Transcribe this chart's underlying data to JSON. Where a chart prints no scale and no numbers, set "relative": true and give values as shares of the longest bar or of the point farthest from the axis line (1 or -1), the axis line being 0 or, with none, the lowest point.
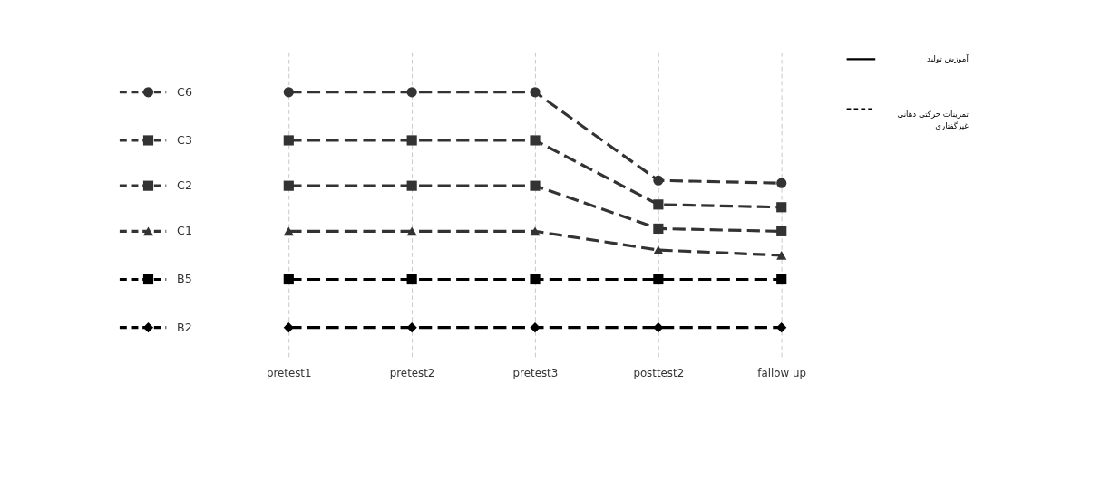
{
  "chart_data": {
    "type": "line",
    "relative": true,
    "categories": [
      "pretest1",
      "pretest2",
      "pretest3",
      "posttest2",
      "fallow up"
    ],
    "series": [
      {
        "name": "C6",
        "color": "#333333",
        "marker": "circle",
        "values": [
          1,
          1,
          1,
          0.67,
          0.66
        ]
      },
      {
        "name": "C3",
        "color": "#333333",
        "marker": "square",
        "values": [
          0.82,
          0.82,
          0.82,
          0.58,
          0.57
        ]
      },
      {
        "name": "C2",
        "color": "#333333",
        "marker": "square",
        "values": [
          0.65,
          0.65,
          0.65,
          0.49,
          0.48
        ]
      },
      {
        "name": "C1",
        "color": "#333333",
        "marker": "triangle",
        "values": [
          0.48,
          0.48,
          0.48,
          0.41,
          0.39
        ]
      },
      {
        "name": "B5",
        "color": "#000000",
        "marker": "square",
        "values": [
          0.3,
          0.3,
          0.3,
          0.3,
          0.3
        ]
      },
      {
        "name": "B2",
        "color": "#000000",
        "marker": "diamond",
        "values": [
          0.12,
          0.12,
          0.12,
          0.12,
          0.12
        ]
      }
    ],
    "legend": "left",
    "grid": "x",
    "line_style": "dashed",
    "annotations": [
      "آموزش تولید",
      "تمرینات حرکتی دهانی غیرگفتاری"
    ]
  }
}
